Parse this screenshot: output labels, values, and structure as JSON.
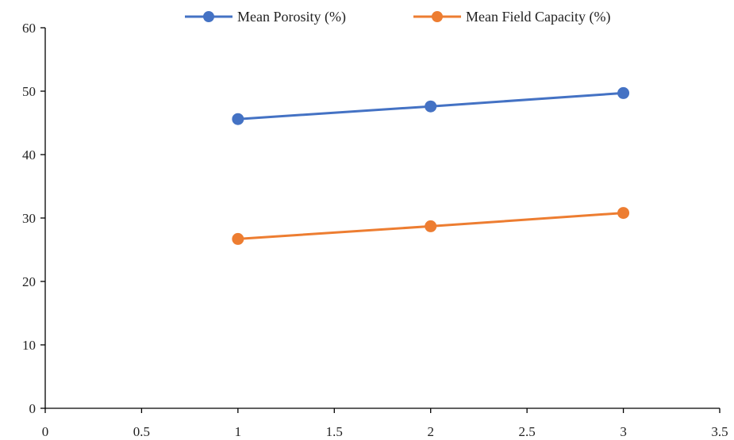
{
  "chart_data": {
    "type": "line",
    "title": "",
    "xlabel": "",
    "ylabel": "",
    "xlim": [
      0,
      3.5
    ],
    "ylim": [
      0,
      60
    ],
    "x_ticks": [
      0,
      0.5,
      1,
      1.5,
      2,
      2.5,
      3,
      3.5
    ],
    "x_tick_labels": [
      "0",
      "0.5",
      "1",
      "1.5",
      "2",
      "2.5",
      "3",
      "3.5"
    ],
    "y_ticks": [
      0,
      10,
      20,
      30,
      40,
      50,
      60
    ],
    "y_tick_labels": [
      "0",
      "10",
      "20",
      "30",
      "40",
      "50",
      "60"
    ],
    "grid": false,
    "legend_position": "top",
    "x": [
      1,
      2,
      3
    ],
    "series": [
      {
        "name": "Mean Porosity (%)",
        "color": "#4472c4",
        "values": [
          45.6,
          47.6,
          49.7
        ]
      },
      {
        "name": "Mean Field Capacity (%)",
        "color": "#ed7d31",
        "values": [
          26.7,
          28.7,
          30.8
        ]
      }
    ]
  }
}
